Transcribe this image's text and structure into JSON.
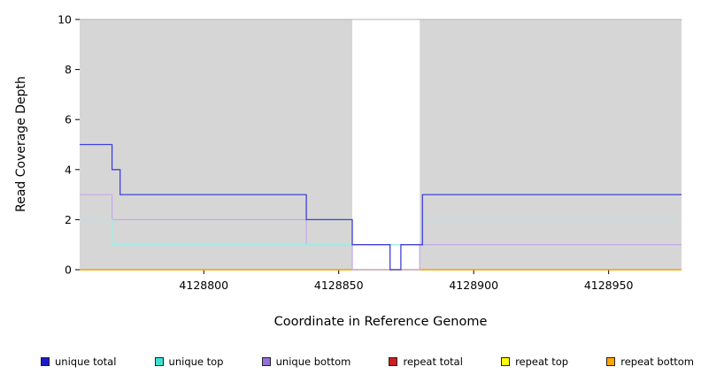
{
  "chart_data": {
    "type": "line",
    "title": "",
    "xlabel": "Coordinate in Reference Genome",
    "ylabel": "Read Coverage Depth",
    "xlim": [
      4128754,
      4128977
    ],
    "ylim": [
      0,
      10
    ],
    "xticks": [
      4128800,
      4128850,
      4128900,
      4128950
    ],
    "yticks": [
      0,
      2,
      4,
      6,
      8,
      10
    ],
    "grid": false,
    "legend_position": "bottom",
    "plot_background": "#d6d6d6",
    "gap_region": {
      "start": 4128855,
      "end": 4128880,
      "color": "#ffffff"
    },
    "draw_order": [
      3,
      4,
      5,
      2,
      1,
      0
    ],
    "series": [
      {
        "name": "unique total",
        "color": "#1a1ac8",
        "line_color": "#4040d8",
        "points": [
          [
            4128754,
            5
          ],
          [
            4128766,
            5
          ],
          [
            4128766,
            4
          ],
          [
            4128769,
            4
          ],
          [
            4128769,
            3
          ],
          [
            4128838,
            3
          ],
          [
            4128838,
            2
          ],
          [
            4128855,
            2
          ],
          [
            4128855,
            1
          ],
          [
            4128869,
            1
          ],
          [
            4128869,
            0
          ],
          [
            4128873,
            0
          ],
          [
            4128873,
            1
          ],
          [
            4128881,
            1
          ],
          [
            4128881,
            3
          ],
          [
            4128977,
            3
          ]
        ]
      },
      {
        "name": "unique top",
        "color": "#40e0d0",
        "line_color": "#a0ece6",
        "points": [
          [
            4128754,
            2
          ],
          [
            4128766,
            2
          ],
          [
            4128766,
            1
          ],
          [
            4128881,
            1
          ],
          [
            4128881,
            2
          ],
          [
            4128977,
            2
          ]
        ]
      },
      {
        "name": "unique bottom",
        "color": "#9370db",
        "line_color": "#c4aee9",
        "points": [
          [
            4128754,
            3
          ],
          [
            4128766,
            3
          ],
          [
            4128766,
            2
          ],
          [
            4128838,
            2
          ],
          [
            4128838,
            1
          ],
          [
            4128855,
            1
          ],
          [
            4128855,
            0
          ],
          [
            4128880,
            0
          ],
          [
            4128880,
            1
          ],
          [
            4128977,
            1
          ]
        ]
      },
      {
        "name": "repeat total",
        "color": "#cc1f1f",
        "line_color": "#cc1f1f",
        "points": [
          [
            4128754,
            0
          ],
          [
            4128977,
            0
          ]
        ]
      },
      {
        "name": "repeat top",
        "color": "#ffff00",
        "line_color": "#ffff00",
        "points": [
          [
            4128754,
            0
          ],
          [
            4128977,
            0
          ]
        ]
      },
      {
        "name": "repeat bottom",
        "color": "#ffa500",
        "line_color": "#ffa500",
        "points": [
          [
            4128754,
            0
          ],
          [
            4128977,
            0
          ]
        ]
      }
    ]
  }
}
